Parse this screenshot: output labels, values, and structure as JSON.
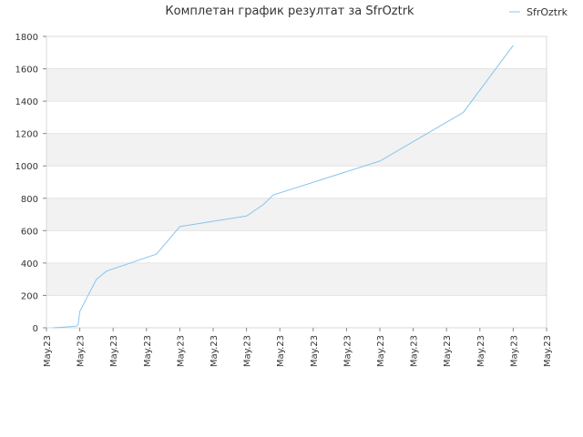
{
  "chart_data": {
    "type": "line",
    "title": "Комплетан график резултат за SfrOztrk",
    "xlabel": "",
    "ylabel": "",
    "ylim": [
      0,
      1800
    ],
    "ytick_values": [
      0,
      200,
      400,
      600,
      800,
      1000,
      1200,
      1400,
      1600,
      1800
    ],
    "ytick_labels": [
      "0",
      "200",
      "400",
      "600",
      "800",
      "1000",
      "1200",
      "1400",
      "1600",
      "1800"
    ],
    "xtick_labels": [
      "May.23",
      "May.23",
      "May.23",
      "May.23",
      "May.23",
      "May.23",
      "May.23",
      "May.23",
      "May.23",
      "May.23",
      "May.23",
      "May.23",
      "May.23",
      "May.23",
      "May.23",
      "May.23"
    ],
    "grid": true,
    "legend_position": "top-right",
    "series": [
      {
        "name": "SfrOztrk",
        "color": "#88c4ee",
        "x": [
          0.2,
          0.6,
          0.9,
          0.95,
          1.0,
          1.5,
          1.8,
          3.3,
          4.0,
          6.0,
          6.5,
          6.8,
          10.0,
          12.5,
          14.0
        ],
        "values": [
          0,
          5,
          10,
          20,
          100,
          300,
          350,
          455,
          625,
          690,
          760,
          820,
          1030,
          1330,
          1745
        ]
      }
    ]
  }
}
